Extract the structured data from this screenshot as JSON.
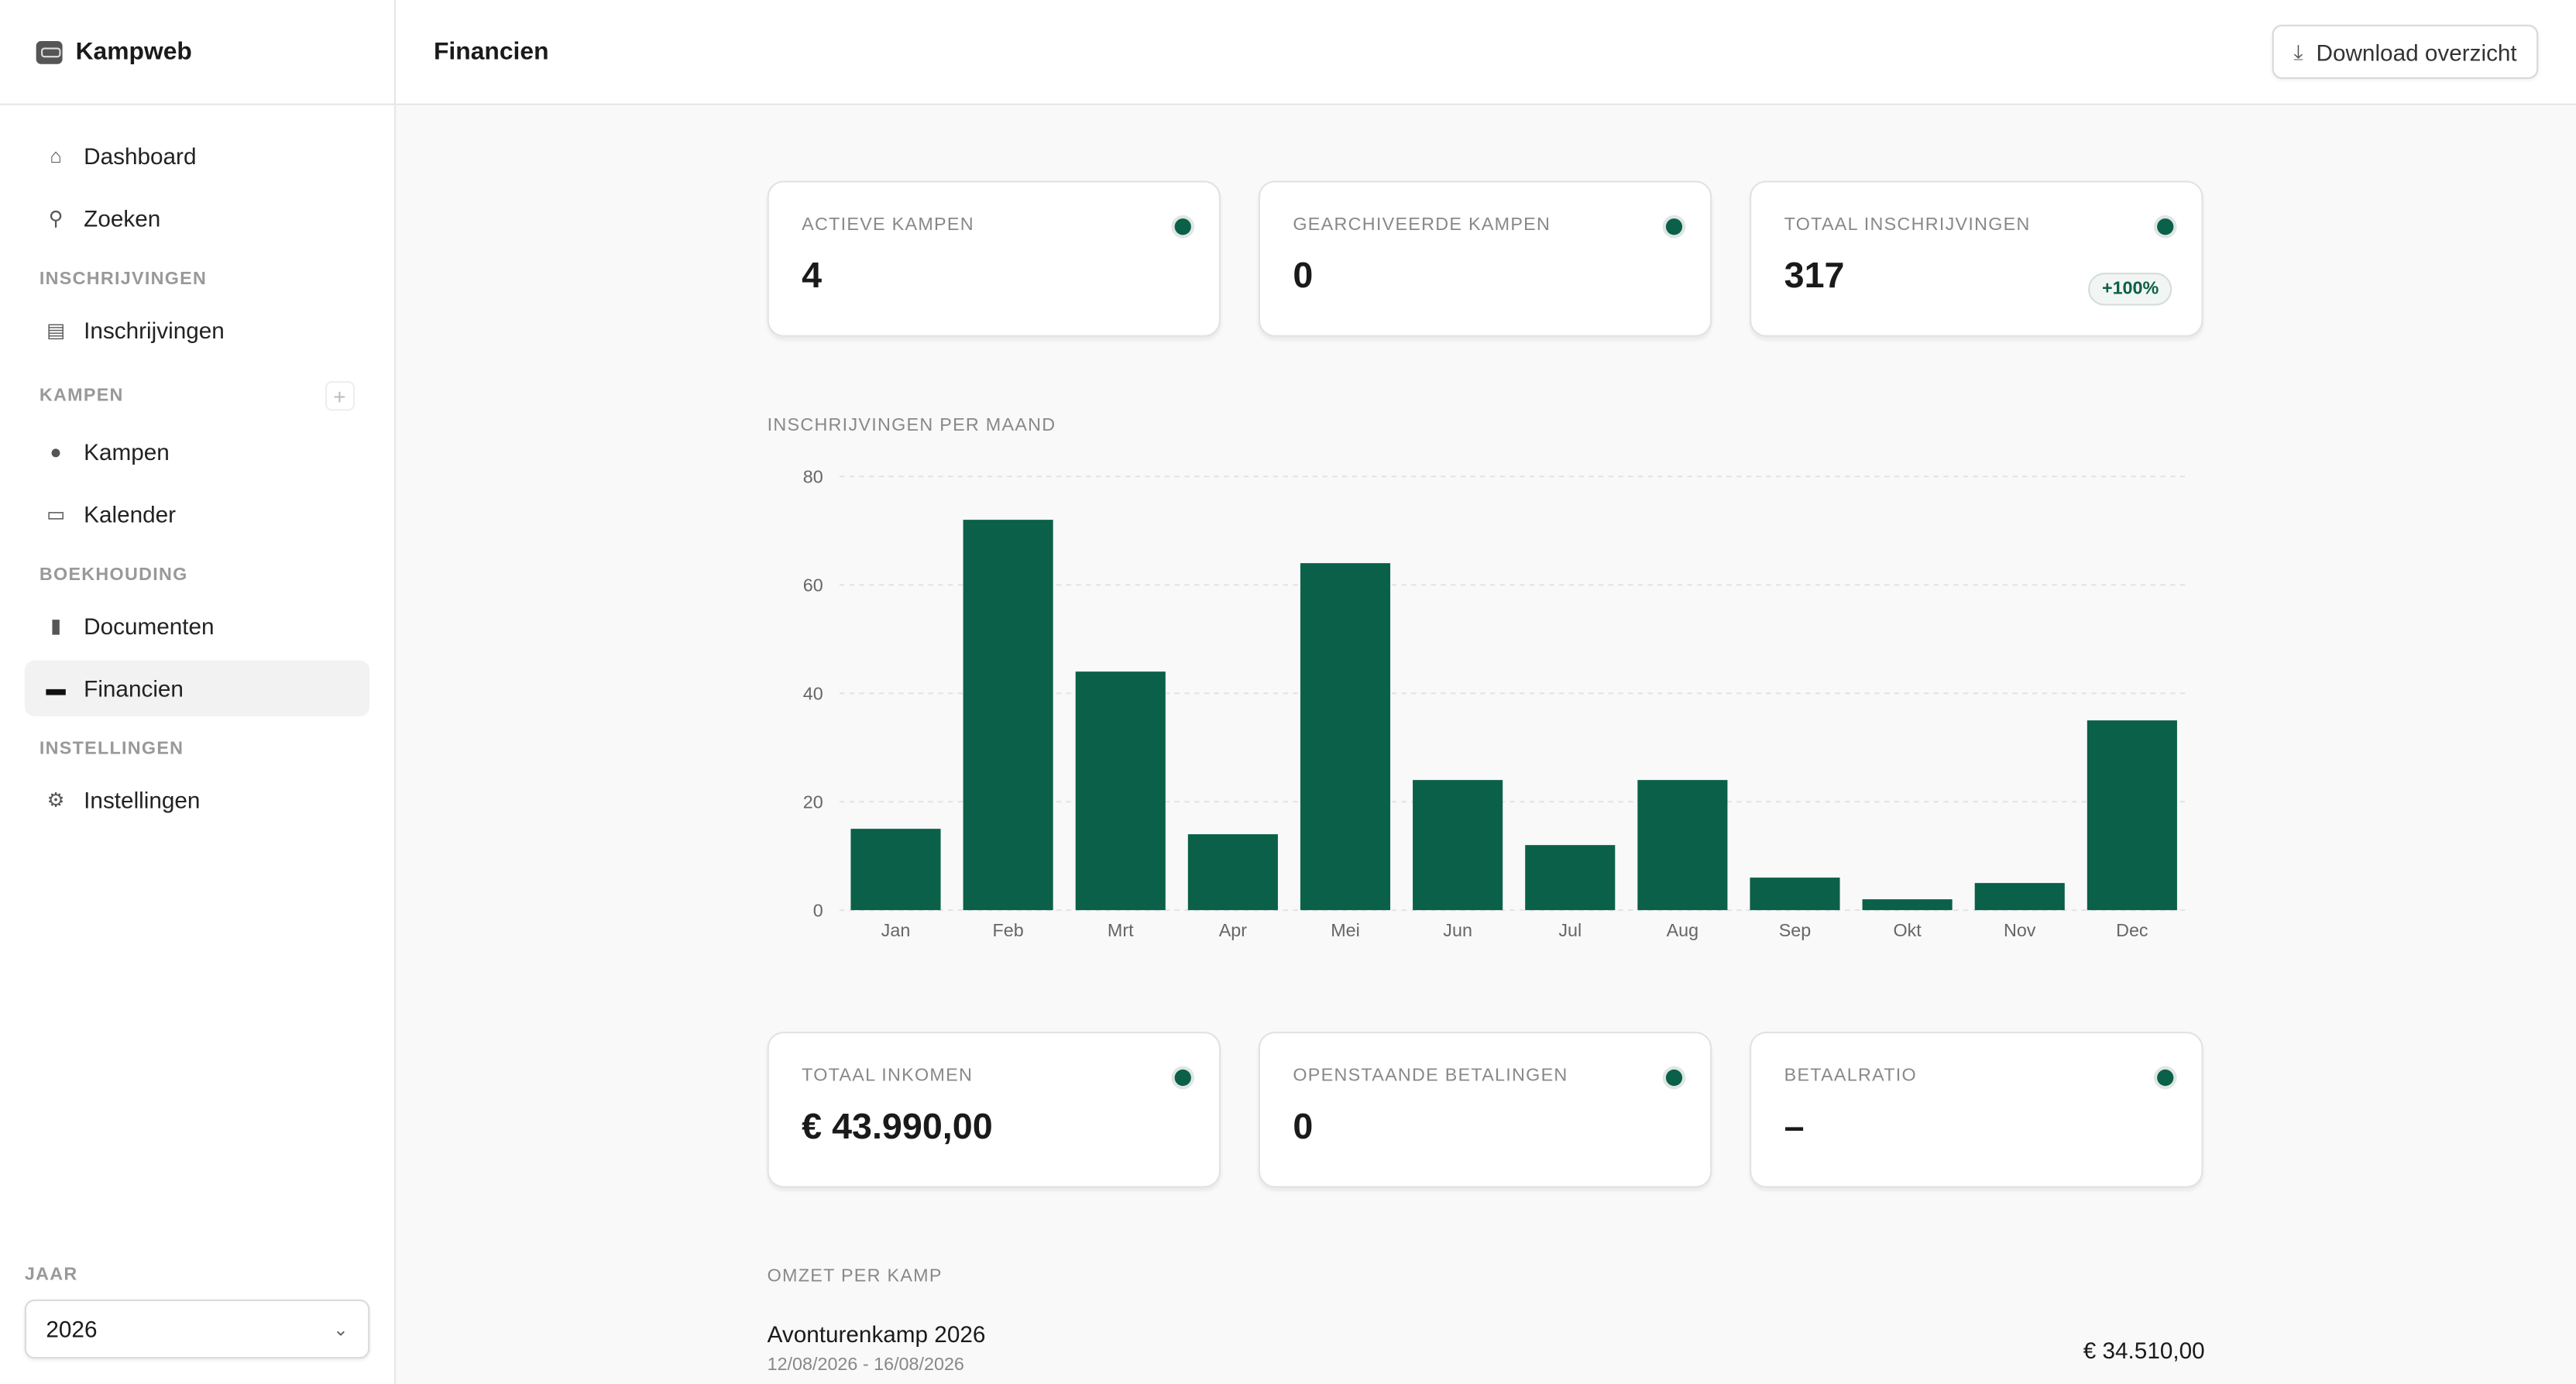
{
  "app": {
    "name": "Kampweb"
  },
  "sidebar": {
    "items_top": [
      {
        "label": "Dashboard",
        "icon": "home-icon"
      },
      {
        "label": "Zoeken",
        "icon": "search-icon"
      }
    ],
    "sections": [
      {
        "title": "INSCHRIJVINGEN",
        "items": [
          {
            "label": "Inschrijvingen",
            "icon": "registrations-icon"
          }
        ]
      },
      {
        "title": "KAMPEN",
        "items": [
          {
            "label": "Kampen",
            "icon": "fire-icon"
          },
          {
            "label": "Kalender",
            "icon": "calendar-icon"
          }
        ]
      },
      {
        "title": "BOEKHOUDING",
        "items": [
          {
            "label": "Documenten",
            "icon": "document-icon"
          },
          {
            "label": "Financien",
            "icon": "money-icon",
            "active": true
          }
        ]
      },
      {
        "title": "INSTELLINGEN",
        "items": [
          {
            "label": "Instellingen",
            "icon": "gear-icon"
          }
        ]
      }
    ],
    "year_label": "JAAR",
    "year_value": "2026"
  },
  "header": {
    "title": "Financien",
    "download_label": "Download overzicht"
  },
  "stats_top": [
    {
      "label": "ACTIEVE KAMPEN",
      "value": "4"
    },
    {
      "label": "GEARCHIVEERDE KAMPEN",
      "value": "0"
    },
    {
      "label": "TOTAAL INSCHRIJVINGEN",
      "value": "317",
      "badge": "+100%"
    }
  ],
  "stats_bottom": [
    {
      "label": "TOTAAL INKOMEN",
      "value": "€ 43.990,00"
    },
    {
      "label": "OPENSTAANDE BETALINGEN",
      "value": "0"
    },
    {
      "label": "BETAALRATIO",
      "value": "–"
    }
  ],
  "chart_data": {
    "type": "bar",
    "title": "INSCHRIJVINGEN PER MAAND",
    "categories": [
      "Jan",
      "Feb",
      "Mrt",
      "Apr",
      "Mei",
      "Jun",
      "Jul",
      "Aug",
      "Sep",
      "Okt",
      "Nov",
      "Dec"
    ],
    "values": [
      15,
      72,
      44,
      14,
      64,
      24,
      12,
      24,
      6,
      2,
      5,
      35
    ],
    "ylim": [
      0,
      80
    ],
    "yticks": [
      0,
      20,
      40,
      60,
      80
    ],
    "grid": true,
    "color": "#0a6048"
  },
  "revenue": {
    "title": "OMZET PER KAMP",
    "rows": [
      {
        "name": "Avonturenkamp 2026",
        "dates": "12/08/2026 - 16/08/2026",
        "amount": "€ 34.510,00"
      }
    ]
  }
}
